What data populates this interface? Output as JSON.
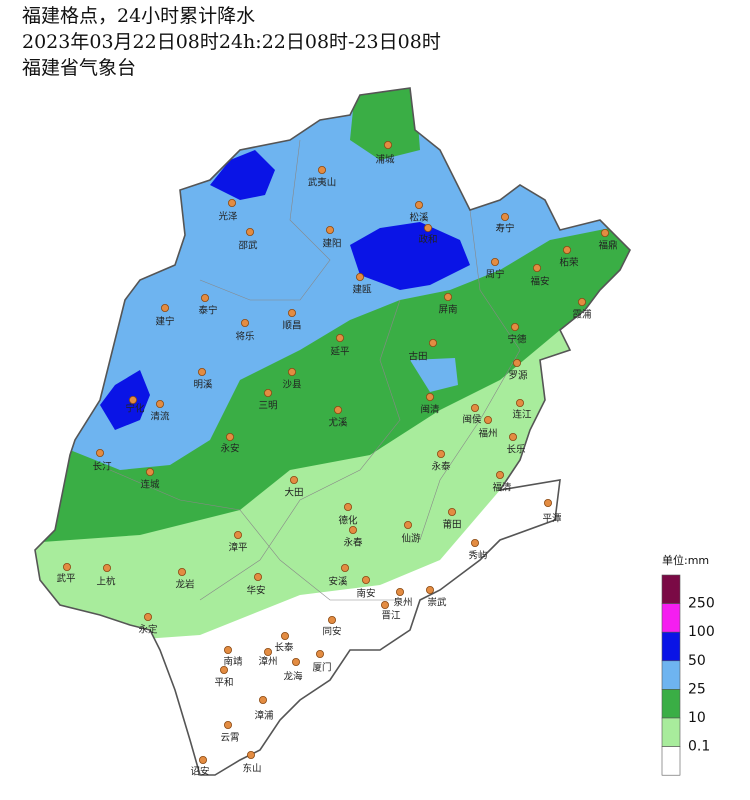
{
  "header": {
    "title": "福建格点，24小时累计降水",
    "period": "2023年03月22日08时24h:22日08时-23日08时",
    "source": "福建省气象台"
  },
  "cities": [
    "浦城",
    "武夷山",
    "光泽",
    "邵武",
    "建阳",
    "松溪",
    "政和",
    "寿宁",
    "福鼎",
    "柘荣",
    "周宁",
    "福安",
    "建瓯",
    "泰宁",
    "建宁",
    "屏南",
    "霞浦",
    "顺昌",
    "将乐",
    "宁德",
    "延平",
    "古田",
    "罗源",
    "明溪",
    "沙县",
    "三明",
    "宁化",
    "清流",
    "闽清",
    "闽侯",
    "连江",
    "尤溪",
    "福州",
    "永安",
    "长乐",
    "长汀",
    "永泰",
    "连城",
    "福清",
    "大田",
    "平潭",
    "德化",
    "莆田",
    "永春",
    "仙游",
    "漳平",
    "秀屿",
    "武平",
    "上杭",
    "龙岩",
    "安溪",
    "华安",
    "南安",
    "泉州",
    "崇武",
    "永定",
    "晋江",
    "同安",
    "长泰",
    "南靖",
    "漳州",
    "厦门",
    "龙海",
    "平和",
    "漳浦",
    "云霄",
    "诏安",
    "东山"
  ],
  "legend": {
    "title": "单位:mm",
    "labels": [
      250,
      100,
      50,
      25,
      10,
      0.1
    ],
    "colors": [
      "#7a0a45",
      "#f51ef0",
      "#0a14e6",
      "#6eb4f0",
      "#3aae45",
      "#a8ec9c",
      "#ffffff"
    ]
  }
}
